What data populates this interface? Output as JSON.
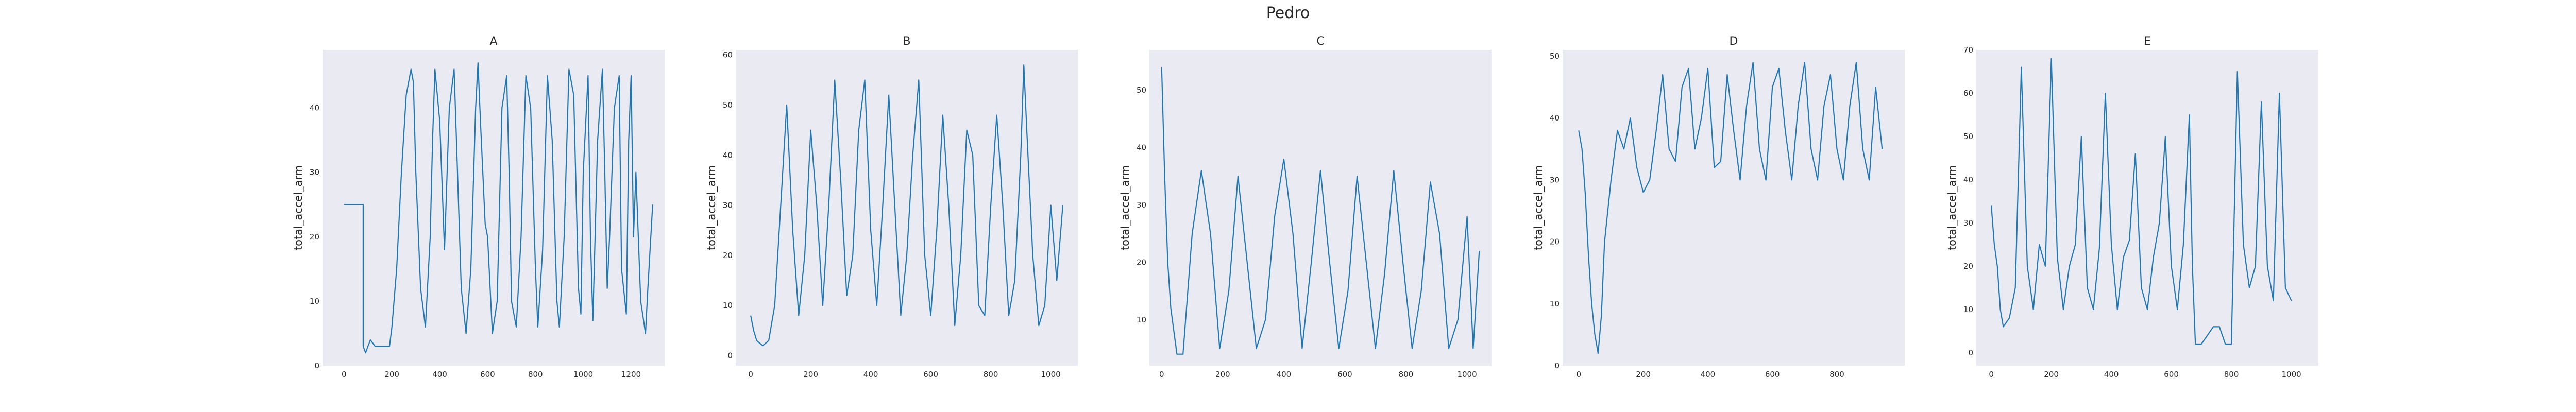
{
  "chart_data": {
    "title": "Pedro",
    "subplots": [
      {
        "type": "line",
        "title": "A",
        "ylabel": "total_accel_arm",
        "xlabel": "",
        "xlim": [
          -90,
          1340
        ],
        "ylim": [
          0,
          49
        ],
        "xticks": [
          0,
          200,
          400,
          600,
          800,
          1000,
          1200
        ],
        "yticks": [
          0,
          10,
          20,
          30,
          40
        ],
        "grid": false,
        "x": [
          0,
          80,
          80,
          90,
          100,
          110,
          130,
          150,
          170,
          190,
          200,
          220,
          240,
          260,
          280,
          290,
          300,
          320,
          340,
          360,
          370,
          380,
          400,
          420,
          440,
          460,
          470,
          490,
          510,
          530,
          550,
          560,
          570,
          590,
          600,
          620,
          640,
          660,
          680,
          690,
          700,
          720,
          740,
          760,
          780,
          800,
          810,
          830,
          850,
          870,
          890,
          900,
          920,
          940,
          960,
          980,
          990,
          1000,
          1020,
          1030,
          1040,
          1060,
          1080,
          1090,
          1100,
          1110,
          1130,
          1150,
          1160,
          1180,
          1190,
          1200,
          1210,
          1220,
          1240,
          1260,
          1270,
          1290
        ],
        "y": [
          25,
          25,
          3,
          2,
          3,
          4,
          3,
          3,
          3,
          3,
          6,
          15,
          30,
          42,
          46,
          44,
          30,
          12,
          6,
          20,
          35,
          46,
          38,
          18,
          40,
          46,
          35,
          12,
          5,
          15,
          40,
          47,
          38,
          22,
          20,
          5,
          10,
          40,
          45,
          30,
          10,
          6,
          20,
          45,
          40,
          15,
          6,
          18,
          45,
          35,
          10,
          6,
          20,
          46,
          42,
          12,
          8,
          30,
          45,
          20,
          7,
          35,
          46,
          30,
          12,
          20,
          40,
          45,
          15,
          8,
          35,
          45,
          20,
          30,
          10,
          5,
          12,
          25
        ]
      },
      {
        "type": "line",
        "title": "B",
        "ylabel": "total_accel_arm",
        "xlabel": "",
        "xlim": [
          -50,
          1090
        ],
        "ylim": [
          -2,
          61
        ],
        "xticks": [
          0,
          200,
          400,
          600,
          800,
          1000
        ],
        "yticks": [
          0,
          10,
          20,
          30,
          40,
          50,
          60
        ],
        "grid": false,
        "x": [
          0,
          10,
          20,
          40,
          60,
          80,
          100,
          120,
          140,
          160,
          180,
          200,
          220,
          240,
          260,
          280,
          300,
          320,
          340,
          360,
          380,
          400,
          420,
          440,
          460,
          480,
          500,
          520,
          540,
          560,
          580,
          600,
          620,
          640,
          660,
          680,
          700,
          720,
          740,
          760,
          780,
          800,
          820,
          840,
          860,
          880,
          900,
          910,
          920,
          940,
          960,
          980,
          1000,
          1020,
          1040
        ],
        "y": [
          8,
          5,
          3,
          2,
          3,
          10,
          30,
          50,
          25,
          8,
          20,
          45,
          30,
          10,
          30,
          55,
          35,
          12,
          20,
          45,
          55,
          25,
          10,
          30,
          52,
          30,
          8,
          20,
          40,
          55,
          20,
          8,
          25,
          48,
          30,
          6,
          20,
          45,
          40,
          10,
          8,
          30,
          48,
          30,
          8,
          15,
          40,
          58,
          45,
          20,
          6,
          10,
          30,
          15,
          30
        ]
      },
      {
        "type": "line",
        "title": "C",
        "ylabel": "total_accel_arm",
        "xlabel": "",
        "xlim": [
          -40,
          1080
        ],
        "ylim": [
          2,
          57
        ],
        "xticks": [
          0,
          200,
          400,
          600,
          800,
          1000
        ],
        "yticks": [
          10,
          20,
          30,
          40,
          50
        ],
        "grid": false,
        "x": [
          0,
          10,
          20,
          30,
          50,
          70,
          100,
          130,
          160,
          190,
          220,
          250,
          280,
          310,
          340,
          370,
          400,
          430,
          460,
          490,
          520,
          550,
          580,
          610,
          640,
          670,
          700,
          730,
          760,
          790,
          820,
          850,
          880,
          910,
          940,
          970,
          1000,
          1020,
          1040
        ],
        "y": [
          54,
          35,
          20,
          12,
          4,
          4,
          25,
          36,
          25,
          5,
          15,
          35,
          20,
          5,
          10,
          28,
          38,
          25,
          5,
          20,
          36,
          20,
          5,
          15,
          35,
          20,
          5,
          18,
          36,
          20,
          5,
          15,
          34,
          25,
          5,
          10,
          28,
          5,
          22
        ]
      },
      {
        "type": "line",
        "title": "D",
        "ylabel": "total_accel_arm",
        "xlabel": "",
        "xlim": [
          -50,
          1010
        ],
        "ylim": [
          0,
          51
        ],
        "xticks": [
          0,
          200,
          400,
          600,
          800
        ],
        "yticks": [
          0,
          10,
          20,
          30,
          40,
          50
        ],
        "grid": false,
        "x": [
          0,
          10,
          20,
          30,
          40,
          50,
          60,
          70,
          80,
          100,
          120,
          140,
          160,
          180,
          200,
          220,
          240,
          260,
          280,
          300,
          320,
          340,
          360,
          380,
          400,
          420,
          440,
          460,
          480,
          500,
          520,
          540,
          560,
          580,
          600,
          620,
          640,
          660,
          680,
          700,
          720,
          740,
          760,
          780,
          800,
          820,
          840,
          860,
          880,
          900,
          920,
          940
        ],
        "y": [
          38,
          35,
          28,
          18,
          10,
          5,
          2,
          8,
          20,
          30,
          38,
          35,
          40,
          32,
          28,
          30,
          38,
          47,
          35,
          33,
          45,
          48,
          35,
          40,
          48,
          32,
          33,
          47,
          38,
          30,
          42,
          49,
          35,
          30,
          45,
          48,
          38,
          30,
          42,
          49,
          35,
          30,
          42,
          47,
          35,
          30,
          42,
          49,
          35,
          30,
          45,
          35
        ]
      },
      {
        "type": "line",
        "title": "E",
        "ylabel": "total_accel_arm",
        "xlabel": "",
        "xlim": [
          -50,
          1090
        ],
        "ylim": [
          -3,
          70
        ],
        "xticks": [
          0,
          200,
          400,
          600,
          800,
          1000
        ],
        "yticks": [
          0,
          10,
          20,
          30,
          40,
          50,
          60,
          70
        ],
        "grid": false,
        "x": [
          0,
          10,
          20,
          30,
          40,
          60,
          80,
          100,
          120,
          140,
          160,
          180,
          200,
          220,
          240,
          260,
          280,
          300,
          320,
          340,
          360,
          380,
          400,
          420,
          440,
          460,
          480,
          500,
          520,
          540,
          560,
          580,
          600,
          620,
          640,
          660,
          670,
          680,
          700,
          720,
          740,
          760,
          780,
          800,
          820,
          840,
          860,
          880,
          900,
          920,
          940,
          960,
          980,
          1000
        ],
        "y": [
          34,
          25,
          20,
          10,
          6,
          8,
          15,
          66,
          20,
          10,
          25,
          20,
          68,
          22,
          10,
          20,
          25,
          50,
          15,
          10,
          24,
          60,
          25,
          10,
          22,
          26,
          46,
          15,
          10,
          22,
          30,
          50,
          20,
          10,
          25,
          55,
          20,
          2,
          2,
          4,
          6,
          6,
          2,
          2,
          65,
          25,
          15,
          20,
          58,
          20,
          12,
          60,
          15,
          12
        ]
      }
    ]
  }
}
